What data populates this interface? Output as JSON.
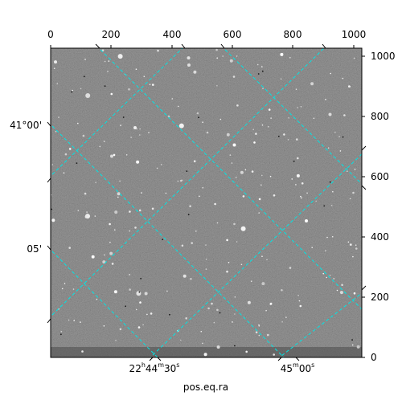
{
  "image": {
    "description": "Grayscale astronomical star field with cyan dashed RA/Dec coordinate grid",
    "background_color": "#6e6e6e",
    "grid_color": "#00ffff"
  },
  "axes": {
    "top_ticks": [
      "0",
      "200",
      "400",
      "600",
      "800",
      "1000"
    ],
    "right_ticks": [
      "0",
      "200",
      "400",
      "600",
      "800",
      "1000"
    ],
    "dec_ticks": [
      "41°00'",
      "05'"
    ],
    "ra_ticks": [
      {
        "h": "22",
        "hs": "h",
        "m": "44",
        "ms": "m",
        "s": "30",
        "ss": "s"
      },
      {
        "m": "45",
        "ms": "m",
        "s": "00",
        "ss": "s"
      }
    ],
    "xlabel": "pos.eq.ra"
  }
}
